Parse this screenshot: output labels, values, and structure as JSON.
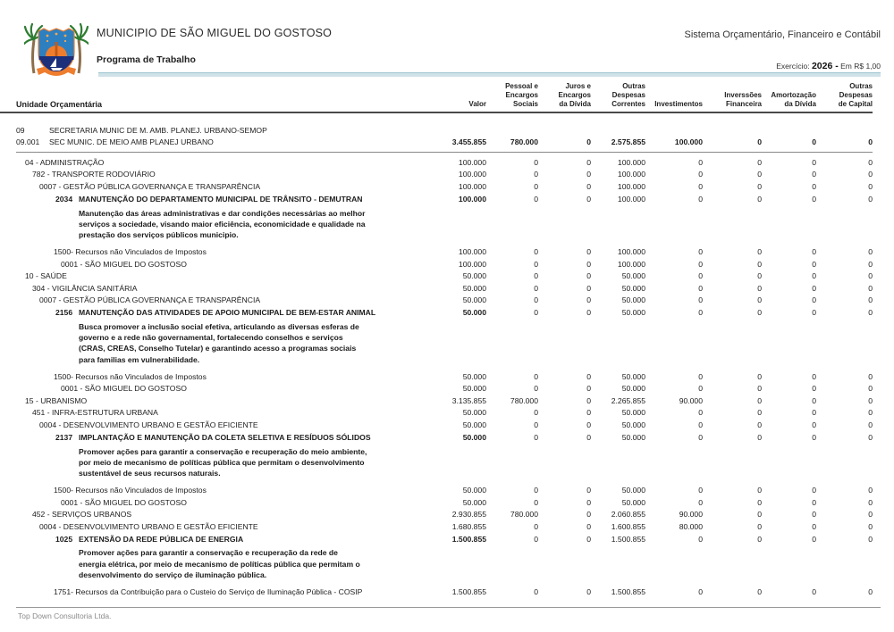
{
  "header": {
    "municipality": "MUNICIPIO DE SÃO MIGUEL DO GOSTOSO",
    "report_title": "Programa de Trabalho",
    "system_name": "Sistema Orçamentário, Financeiro e Contábil",
    "exercise_label": "Exercício:",
    "exercise_value": "2026 -",
    "currency_note": "Em R$ 1,00",
    "logo_icon": "municipal-coat-of-arms",
    "logo_colors": {
      "sky": "#2e7fc0",
      "sea": "#1b2f7a",
      "sun": "#ef7d2e",
      "ribbon": "#ef7d2e",
      "palm": "#2e7d32",
      "trunk": "#8d6e4b"
    },
    "accent_bar_color": "#cfe2e7"
  },
  "table": {
    "first_column_header": "Unidade Orçamentária",
    "columns": [
      {
        "lines": [
          "Valor"
        ]
      },
      {
        "lines": [
          "Pessoal e",
          "Encargos",
          "Sociais"
        ]
      },
      {
        "lines": [
          "Juros e",
          "Encargos",
          "da Dívida"
        ]
      },
      {
        "lines": [
          "Outras",
          "Despesas",
          "Correntes"
        ]
      },
      {
        "lines": [
          "Investimentos"
        ]
      },
      {
        "lines": [
          "Inverssões",
          "Financeira"
        ]
      },
      {
        "lines": [
          "Amortozação",
          "da Dívida"
        ]
      },
      {
        "lines": [
          "Outras",
          "Despesas",
          "de Capital"
        ]
      }
    ],
    "rows": [
      {
        "type": "org",
        "code": "09",
        "label": "SECRETARIA MUNIC DE M. AMB. PLANEJ. URBANO-SEMOP",
        "values": null
      },
      {
        "type": "org",
        "code": "09.001",
        "label": "SEC MUNIC. DE MEIO AMB PLANEJ URBANO",
        "values": [
          "3.455.855",
          "780.000",
          "0",
          "2.575.855",
          "100.000",
          "0",
          "0",
          "0"
        ]
      },
      {
        "type": "separator"
      },
      {
        "type": "function",
        "label": "04 - ADMINISTRAÇÃO",
        "values": [
          "100.000",
          "0",
          "0",
          "100.000",
          "0",
          "0",
          "0",
          "0"
        ]
      },
      {
        "type": "subfunction",
        "label": "782 - TRANSPORTE RODOVIÁRIO",
        "values": [
          "100.000",
          "0",
          "0",
          "100.000",
          "0",
          "0",
          "0",
          "0"
        ]
      },
      {
        "type": "program",
        "label": "0007 - GESTÃO PÚBLICA GOVERNANÇA E TRANSPARÊNCIA",
        "values": [
          "100.000",
          "0",
          "0",
          "100.000",
          "0",
          "0",
          "0",
          "0"
        ]
      },
      {
        "type": "action",
        "code": "2034",
        "label": "MANUTENÇÃO DO DEPARTAMENTO MUNICIPAL DE TRÂNSITO - DEMUTRAN",
        "values": [
          "100.000",
          "0",
          "0",
          "100.000",
          "0",
          "0",
          "0",
          "0"
        ]
      },
      {
        "type": "desc",
        "lines": [
          "Manutenção das áreas administrativas e dar condições necessárias ao melhor",
          "serviços a sociedade, visando maior eficiência, economicidade e qualidade na",
          "prestação dos serviços públicos municipio."
        ]
      },
      {
        "type": "source",
        "label": "1500- Recursos não Vinculados de Impostos",
        "values": [
          "100.000",
          "0",
          "0",
          "100.000",
          "0",
          "0",
          "0",
          "0"
        ]
      },
      {
        "type": "loc",
        "label": "0001 - SÃO MIGUEL DO GOSTOSO",
        "values": [
          "100.000",
          "0",
          "0",
          "100.000",
          "0",
          "0",
          "0",
          "0"
        ]
      },
      {
        "type": "function",
        "label": "10 - SAÚDE",
        "values": [
          "50.000",
          "0",
          "0",
          "50.000",
          "0",
          "0",
          "0",
          "0"
        ]
      },
      {
        "type": "subfunction",
        "label": "304 - VIGILÂNCIA SANITÁRIA",
        "values": [
          "50.000",
          "0",
          "0",
          "50.000",
          "0",
          "0",
          "0",
          "0"
        ]
      },
      {
        "type": "program",
        "label": "0007 - GESTÃO PÚBLICA GOVERNANÇA E TRANSPARÊNCIA",
        "values": [
          "50.000",
          "0",
          "0",
          "50.000",
          "0",
          "0",
          "0",
          "0"
        ]
      },
      {
        "type": "action",
        "code": "2156",
        "label": "MANUTENÇÃO DAS ATIVIDADES DE APOIO MUNICIPAL DE BEM-ESTAR ANIMAL",
        "values": [
          "50.000",
          "0",
          "0",
          "50.000",
          "0",
          "0",
          "0",
          "0"
        ]
      },
      {
        "type": "desc",
        "lines": [
          "Busca promover a inclusão social efetiva, articulando as diversas esferas de",
          "governo e a rede não governamental, fortalecendo conselhos e serviços",
          "(CRAS, CREAS, Conselho Tutelar) e garantindo acesso a programas sociais",
          "para familias em vulnerabilidade."
        ]
      },
      {
        "type": "source",
        "label": "1500- Recursos não Vinculados de Impostos",
        "values": [
          "50.000",
          "0",
          "0",
          "50.000",
          "0",
          "0",
          "0",
          "0"
        ]
      },
      {
        "type": "loc",
        "label": "0001 - SÃO MIGUEL DO GOSTOSO",
        "values": [
          "50.000",
          "0",
          "0",
          "50.000",
          "0",
          "0",
          "0",
          "0"
        ]
      },
      {
        "type": "function",
        "label": "15 - URBANISMO",
        "values": [
          "3.135.855",
          "780.000",
          "0",
          "2.265.855",
          "90.000",
          "0",
          "0",
          "0"
        ]
      },
      {
        "type": "subfunction",
        "label": "451 - INFRA-ESTRUTURA URBANA",
        "values": [
          "50.000",
          "0",
          "0",
          "50.000",
          "0",
          "0",
          "0",
          "0"
        ]
      },
      {
        "type": "program",
        "label": "0004 - DESENVOLVIMENTO URBANO E GESTÃO EFICIENTE",
        "values": [
          "50.000",
          "0",
          "0",
          "50.000",
          "0",
          "0",
          "0",
          "0"
        ]
      },
      {
        "type": "action",
        "code": "2137",
        "label": "IMPLANTAÇÃO E MANUTENÇÃO  DA COLETA SELETIVA E RESÍDUOS SÓLIDOS",
        "values": [
          "50.000",
          "0",
          "0",
          "50.000",
          "0",
          "0",
          "0",
          "0"
        ]
      },
      {
        "type": "desc",
        "lines": [
          "Promover ações para garantir a conservação e recuperação do meio ambiente,",
          "por meio de mecanismo de políticas pública que permitam o desenvolvimento",
          "sustentável de seus recursos naturais."
        ]
      },
      {
        "type": "source",
        "label": "1500- Recursos não Vinculados de Impostos",
        "values": [
          "50.000",
          "0",
          "0",
          "50.000",
          "0",
          "0",
          "0",
          "0"
        ]
      },
      {
        "type": "loc",
        "label": "0001 - SÃO MIGUEL DO GOSTOSO",
        "values": [
          "50.000",
          "0",
          "0",
          "50.000",
          "0",
          "0",
          "0",
          "0"
        ]
      },
      {
        "type": "subfunction",
        "label": "452 - SERVIÇOS URBANOS",
        "values": [
          "2.930.855",
          "780.000",
          "0",
          "2.060.855",
          "90.000",
          "0",
          "0",
          "0"
        ]
      },
      {
        "type": "program",
        "label": "0004 - DESENVOLVIMENTO URBANO E GESTÃO EFICIENTE",
        "values": [
          "1.680.855",
          "0",
          "0",
          "1.600.855",
          "80.000",
          "0",
          "0",
          "0"
        ]
      },
      {
        "type": "action",
        "code": "1025",
        "label": "EXTENSÃO DA REDE PÚBLICA DE ENERGIA",
        "values": [
          "1.500.855",
          "0",
          "0",
          "1.500.855",
          "0",
          "0",
          "0",
          "0"
        ]
      },
      {
        "type": "desc",
        "lines": [
          "Promover ações para garantir a conservação e recuperação da rede de",
          "energia elétrica, por meio de mecanismo de políticas pública que permitam o",
          "desenvolvimento do serviço de iluminação pública."
        ]
      },
      {
        "type": "source",
        "label": "1751- Recursos da Contribuição para o Custeio do Serviço de Iluminação Pública - COSIP",
        "values": [
          "1.500.855",
          "0",
          "0",
          "1.500.855",
          "0",
          "0",
          "0",
          "0"
        ]
      }
    ]
  },
  "footer": {
    "text": "Top Down Consultoria Ltda."
  }
}
